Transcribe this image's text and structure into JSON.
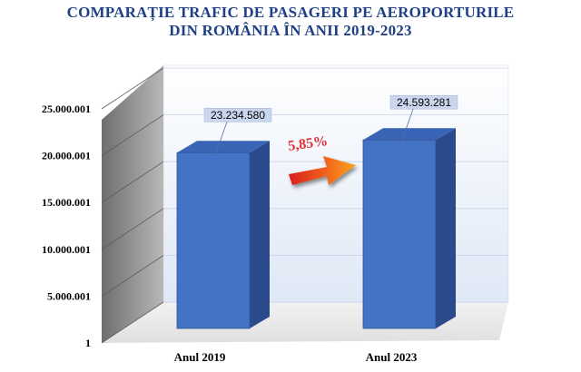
{
  "title_line1": "COMPARAȚIE TRAFIC DE PASAGERI PE AEROPORTURILE",
  "title_line2": "DIN ROMÂNIA ÎN ANII 2019-2023",
  "chart_data": {
    "type": "bar",
    "title": "COMPARAȚIE TRAFIC DE PASAGERI PE AEROPORTURILE DIN ROMÂNIA ÎN ANII 2019-2023",
    "categories": [
      "Anul 2019",
      "Anul 2023"
    ],
    "values": [
      23234580,
      24593281
    ],
    "data_labels": [
      "23.234.580",
      "24.593.281"
    ],
    "y_ticks": [
      "1",
      "5.000.001",
      "10.000.001",
      "15.000.001",
      "20.000.001",
      "25.000.001"
    ],
    "ylim": [
      1,
      25000001
    ],
    "annotation": "5,85%",
    "xlabel": "",
    "ylabel": "",
    "grid": true,
    "bar_color": "#4472c4",
    "bar_side_color": "#2a4a8c",
    "wall_color": "#8c8c8c",
    "annotation_color": "#e03030",
    "style": "3d"
  }
}
